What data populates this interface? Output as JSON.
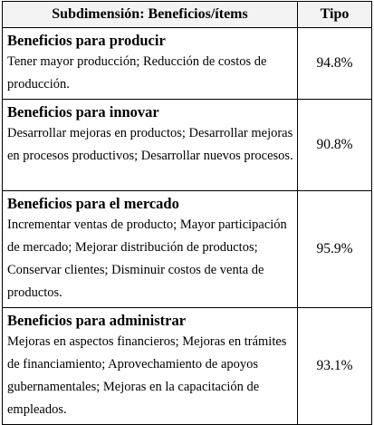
{
  "table": {
    "headers": [
      "Subdimensión: Beneficios/ítems",
      "Tipo"
    ],
    "rows": [
      {
        "title": "Beneficios para producir",
        "text": "Tener mayor producción; Reducción de costos de producción.",
        "value": "94.8%"
      },
      {
        "title": "Beneficios para innovar",
        "text": "Desarrollar mejoras en productos; Desarrollar mejoras en procesos productivos; Desarrollar nuevos procesos.",
        "value": "90.8%"
      },
      {
        "title": "Beneficios para el mercado",
        "text": "Incrementar ventas de producto; Mayor participación de mercado; Mejorar distribución de productos; Conservar clientes; Disminuir costos de venta de productos.",
        "value": "95.9%"
      },
      {
        "title": "Beneficios para administrar",
        "text": "Mejoras en aspectos financieros; Mejoras en trámites de financiamiento; Aprovechamiento de apoyos gubernamentales; Mejoras en la capacitación de empleados.",
        "value": "93.1%"
      }
    ]
  }
}
